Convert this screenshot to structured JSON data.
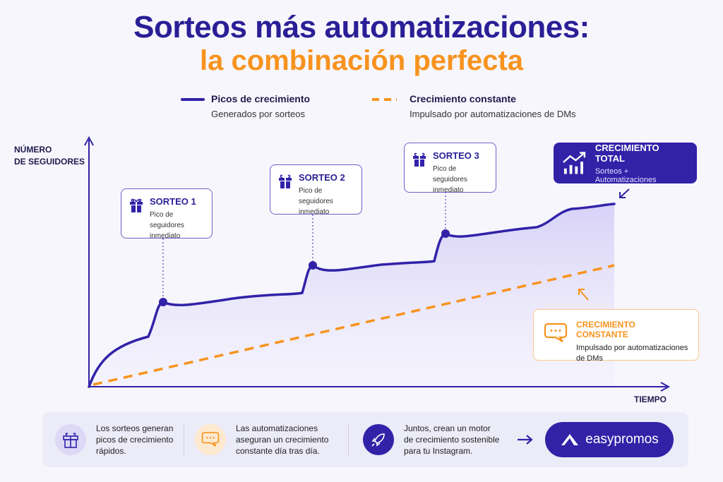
{
  "title": {
    "line1": "Sorteos más automatizaciones:",
    "line2": "la combinación perfecta"
  },
  "legend": [
    {
      "label": "Picos de crecimiento",
      "sublabel": "Generados por sorteos",
      "style": "solid",
      "color": "#3222a8"
    },
    {
      "label": "Crecimiento constante",
      "sublabel": "Impulsado por automatizaciones de DMs",
      "style": "dashed",
      "color": "#f7931e"
    }
  ],
  "axes": {
    "y_line1": "NÚMERO",
    "y_line2": "DE SEGUIDORES",
    "x": "TIEMPO"
  },
  "annotations": [
    {
      "title": "SORTEO 1",
      "line1": "Pico de seguidores",
      "line2": "inmediato",
      "icon": "gift-icon"
    },
    {
      "title": "SORTEO 2",
      "line1": "Pico de seguidores",
      "line2": "inmediato",
      "icon": "gift-icon"
    },
    {
      "title": "SORTEO 3",
      "line1": "Pico de seguidores",
      "line2": "inmediato",
      "icon": "gift-icon"
    }
  ],
  "total": {
    "title": "CRECIMIENTO TOTAL",
    "subtitle": "Sorteos + Automatizaciones",
    "icon": "growth-chart-icon"
  },
  "constant": {
    "title": "CRECIMIENTO CONSTANTE",
    "line1": "Impulsado por automatizaciones",
    "line2": "de DMs",
    "icon": "chat-bubble-icon"
  },
  "footer": {
    "items": [
      {
        "line1": "Los sorteos generan",
        "line2": "picos de crecimiento",
        "line3": "rápidos.",
        "icon": "gift-icon"
      },
      {
        "line1": "Las automatizaciones",
        "line2": "aseguran un crecimiento",
        "line3": "constante día tras día.",
        "icon": "chat-bubble-icon"
      },
      {
        "line1": "Juntos, crean un motor",
        "line2": "de crecimiento sostenible",
        "line3": "para tu Instagram.",
        "icon": "rocket-icon"
      }
    ],
    "brand": "easypromos"
  },
  "colors": {
    "primary": "#3222a8",
    "accent": "#f7931e",
    "background": "#f7f6fc"
  }
}
